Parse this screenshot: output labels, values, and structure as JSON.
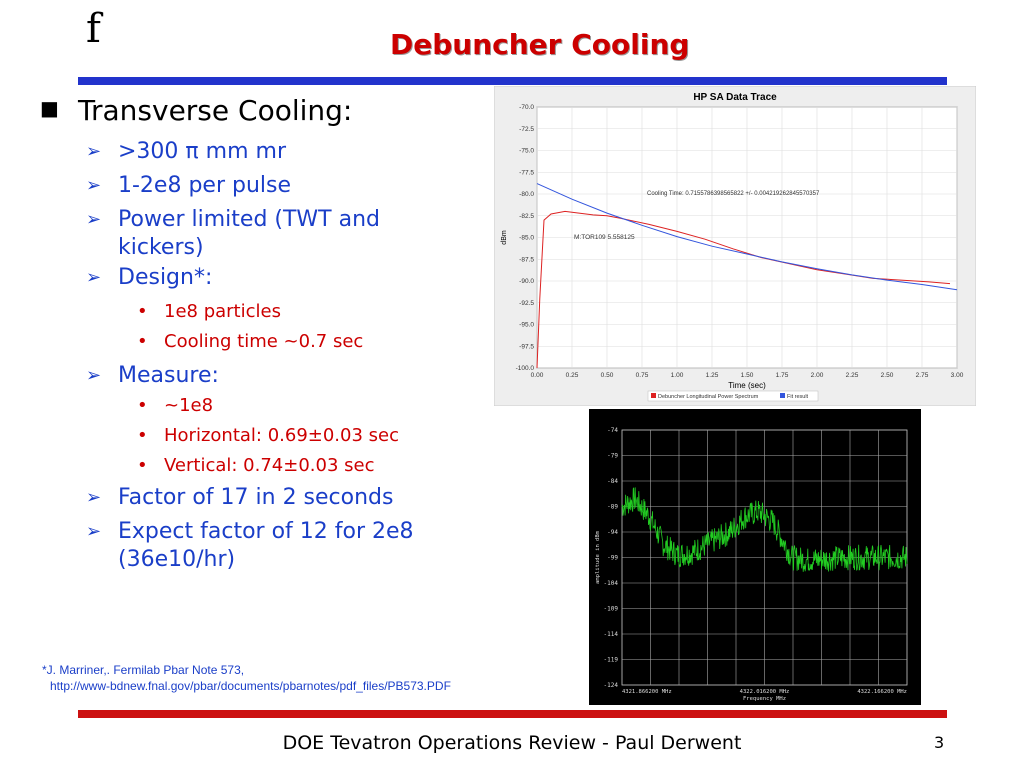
{
  "slide": {
    "logo": "f",
    "title": "Debuncher Cooling",
    "footer": "DOE Tevatron Operations Review - Paul Derwent",
    "page_number": "3"
  },
  "bullets": {
    "main": "Transverse Cooling:",
    "items": [
      ">300 π mm mr",
      "1-2e8 per pulse",
      "Power limited (TWT and kickers)",
      "Design*:",
      "Measure:",
      "Factor of 17 in 2 seconds",
      "Expect factor of 12 for 2e8 (36e10/hr)"
    ],
    "design_sub": [
      "1e8 particles",
      "Cooling time ~0.7 sec"
    ],
    "measure_sub": [
      "~1e8",
      "Horizontal:  0.69±0.03 sec",
      "Vertical:  0.74±0.03 sec"
    ]
  },
  "reference": {
    "line1": "*J. Marriner,. Fermilab Pbar Note 573,",
    "line2": "http://www-bdnew.fnal.gov/pbar/documents/pbarnotes/pdf_files/PB573.PDF"
  },
  "colors": {
    "title": "#cc0000",
    "bullets_blue": "#1a3ec8",
    "sub_red": "#cc0000",
    "top_bar": "#2233cc",
    "bottom_bar": "#cc1111"
  },
  "chart_data": [
    {
      "type": "line",
      "title": "HP SA Data Trace",
      "xlabel": "Time (sec)",
      "ylabel": "dBm",
      "xlim": [
        0,
        3
      ],
      "ylim": [
        -100,
        -70
      ],
      "x_ticks": [
        "0.00",
        "0.25",
        "0.50",
        "0.75",
        "1.00",
        "1.25",
        "1.50",
        "1.75",
        "2.00",
        "2.25",
        "2.50",
        "2.75",
        "3.00"
      ],
      "y_ticks": [
        "-70.0",
        "-72.5",
        "-75.0",
        "-77.5",
        "-80.0",
        "-82.5",
        "-85.0",
        "-87.5",
        "-90.0",
        "-92.5",
        "-95.0",
        "-97.5",
        "-100.0"
      ],
      "annotations": [
        "Cooling Time: 0.7155786398565822 +/- 0.004219262845570357",
        "M:TOR109 5.558125"
      ],
      "grid": true,
      "legend_position": "bottom",
      "series": [
        {
          "name": "Debuncher Longitudinal Power Spectrum",
          "color": "#dd2222",
          "x": [
            0.0,
            0.02,
            0.05,
            0.1,
            0.2,
            0.3,
            0.4,
            0.5,
            0.6,
            0.8,
            1.0,
            1.2,
            1.4,
            1.6,
            1.8,
            2.0,
            2.2,
            2.4,
            2.6,
            2.8,
            2.95
          ],
          "y": [
            -100.0,
            -92.0,
            -83.0,
            -82.3,
            -82.0,
            -82.2,
            -82.4,
            -82.5,
            -82.8,
            -83.5,
            -84.3,
            -85.2,
            -86.3,
            -87.3,
            -88.0,
            -88.7,
            -89.2,
            -89.7,
            -89.9,
            -90.1,
            -90.3
          ]
        },
        {
          "name": "Fit result",
          "color": "#3355dd",
          "x": [
            0.0,
            0.25,
            0.5,
            0.75,
            1.0,
            1.25,
            1.5,
            1.75,
            2.0,
            2.25,
            2.5,
            2.75,
            3.0
          ],
          "y": [
            -78.8,
            -80.6,
            -82.2,
            -83.6,
            -84.9,
            -86.0,
            -86.9,
            -87.8,
            -88.6,
            -89.3,
            -89.9,
            -90.4,
            -91.0
          ]
        }
      ]
    },
    {
      "type": "line",
      "title": "",
      "xlabel": "Frequency MHz",
      "ylabel": "amplitude in dBm",
      "x_ticks": [
        "4321.866200 MHz",
        "4322.016200 MHz",
        "4322.166200 MHz"
      ],
      "y_ticks": [
        "-74",
        "-79",
        "-84",
        "-89",
        "-94",
        "-99",
        "-104",
        "-109",
        "-114",
        "-119",
        "-124"
      ],
      "xlim": [
        4321.8662,
        4322.1662
      ],
      "ylim": [
        -124,
        -74
      ],
      "grid": true,
      "series": [
        {
          "color": "#22cc22",
          "x": [
            4321.8662,
            4321.88,
            4321.895,
            4321.91,
            4321.925,
            4321.94,
            4321.96,
            4321.98,
            4321.995,
            4322.01,
            4322.025,
            4322.035,
            4322.045,
            4322.06,
            4322.08,
            4322.1,
            4322.12,
            4322.14,
            4322.1662
          ],
          "y": [
            -89.0,
            -87.5,
            -91.0,
            -96.5,
            -98.5,
            -98.0,
            -96.0,
            -94.0,
            -91.0,
            -90.0,
            -92.0,
            -95.5,
            -99.0,
            -99.5,
            -99.3,
            -99.0,
            -99.0,
            -99.0,
            -99.0
          ]
        }
      ]
    }
  ]
}
